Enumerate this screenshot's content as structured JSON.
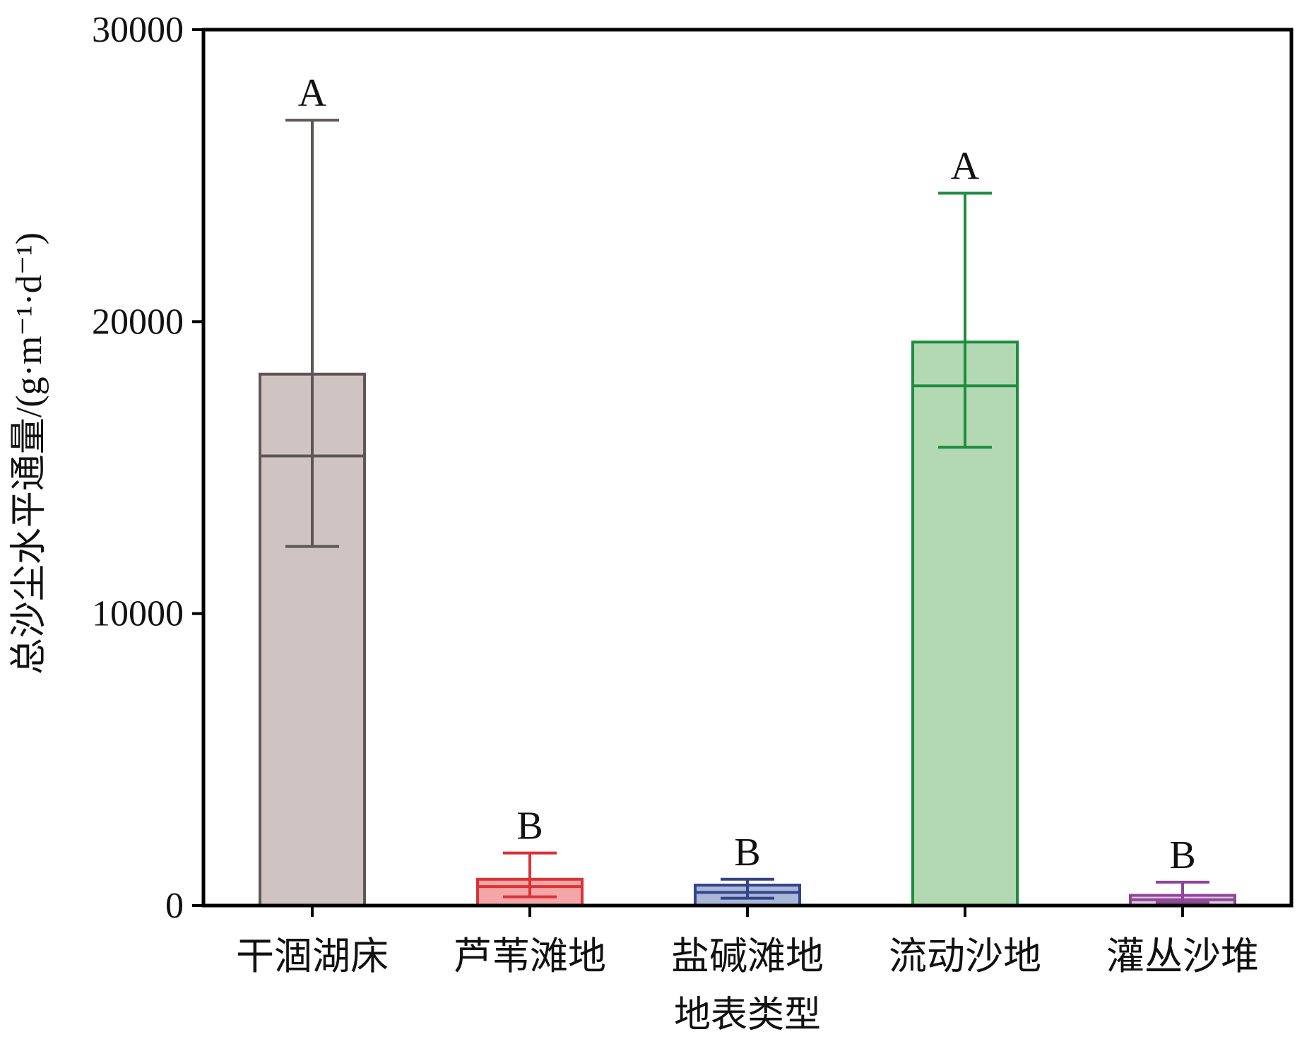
{
  "chart_data": {
    "type": "bar",
    "xlabel": "地表类型",
    "ylabel": "总沙尘水平通量/(g·m⁻¹·d⁻¹)",
    "ylim": [
      0,
      30000
    ],
    "yticks": [
      0,
      10000,
      20000,
      30000
    ],
    "grid": false,
    "legend": "none",
    "categories": [
      "干涸湖床",
      "芦苇滩地",
      "盐碱滩地",
      "流动沙地",
      "灌丛沙堆"
    ],
    "values": [
      18200,
      900,
      700,
      19300,
      350
    ],
    "means": [
      15400,
      650,
      450,
      17800,
      200
    ],
    "error_low": [
      12300,
      300,
      250,
      15700,
      100
    ],
    "error_high": [
      26900,
      1800,
      900,
      24400,
      800
    ],
    "significance": [
      "A",
      "B",
      "B",
      "A",
      "B"
    ],
    "fill_colors": [
      "#cfc4c2",
      "#f3a7a8",
      "#a9b8d8",
      "#b2d9b2",
      "#e1c6e2"
    ],
    "stroke_colors": [
      "#5e5756",
      "#dc3236",
      "#34438a",
      "#1f8c40",
      "#8e4696"
    ]
  }
}
